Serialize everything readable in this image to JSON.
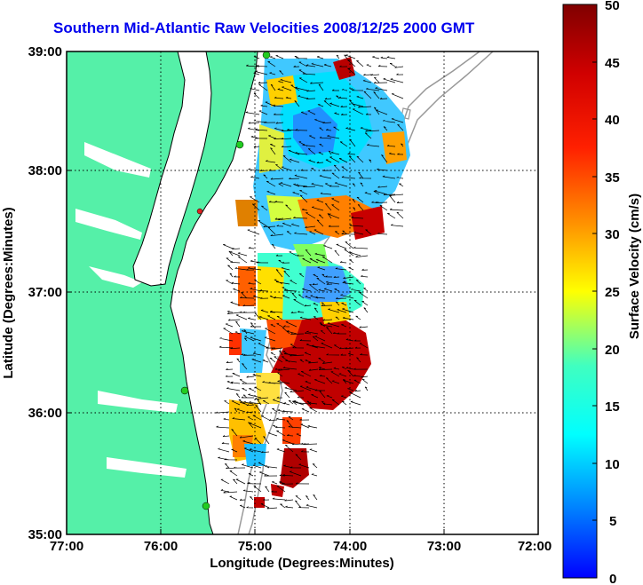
{
  "title": "Southern Mid-Atlantic Raw Velocities 2008/12/25 2000 GMT",
  "xlabel": "Longitude (Degrees:Minutes)",
  "ylabel": "Latitude (Degrees:Minutes)",
  "colorbar_label": "Surface Velocity (cm/s)",
  "x_ticks": [
    "77:00",
    "76:00",
    "75:00",
    "74:00",
    "73:00",
    "72:00"
  ],
  "y_ticks": [
    "39:00",
    "38:00",
    "37:00",
    "36:00",
    "35:00"
  ],
  "colorbar_ticks": [
    "50",
    "45",
    "40",
    "35",
    "30",
    "25",
    "20",
    "15",
    "10",
    "5",
    "0"
  ],
  "colors": {
    "land": "#55f0a8",
    "title": "#0000ee",
    "grid": "#000000",
    "bathymetry": "#999999",
    "station": "#22cc22"
  },
  "map_extent": {
    "lon": [
      -77,
      -72
    ],
    "lat": [
      35,
      39
    ]
  },
  "colorbar_range": [
    0,
    50
  ]
}
